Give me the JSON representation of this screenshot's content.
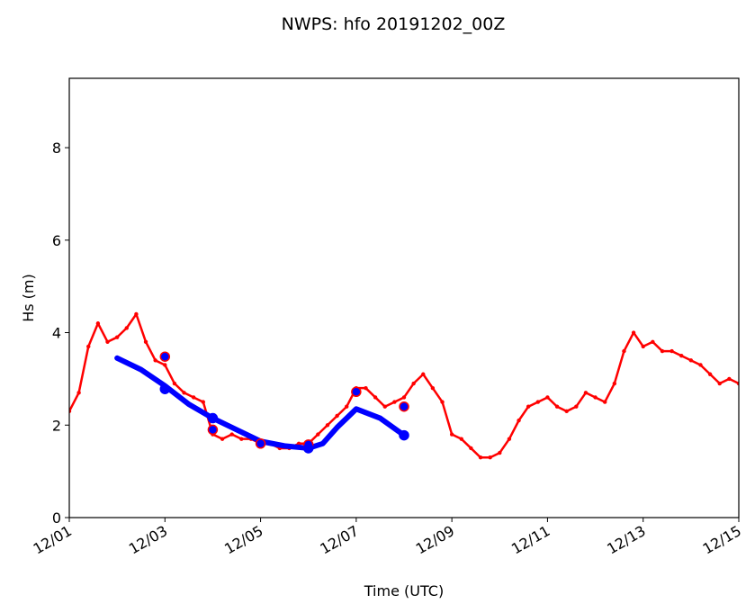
{
  "chart_data": {
    "type": "line",
    "title": "NWPS: hfo 20191202_00Z",
    "x_label": "Time (UTC)",
    "y_label": "Hs (m)",
    "xlim": [
      1,
      15
    ],
    "ylim": [
      0,
      9.5
    ],
    "xticks": [
      {
        "value": 1,
        "label": "12/01"
      },
      {
        "value": 3,
        "label": "12/03"
      },
      {
        "value": 5,
        "label": "12/05"
      },
      {
        "value": 7,
        "label": "12/07"
      },
      {
        "value": 9,
        "label": "12/09"
      },
      {
        "value": 11,
        "label": "12/11"
      },
      {
        "value": 13,
        "label": "12/13"
      },
      {
        "value": 15,
        "label": "12/15"
      }
    ],
    "yticks": [
      0,
      2,
      4,
      6,
      8
    ],
    "grid": false,
    "series": [
      {
        "color": "#ff0000",
        "style": "line-dots",
        "x": [
          1.0,
          1.2,
          1.4,
          1.6,
          1.8,
          2.0,
          2.2,
          2.4,
          2.6,
          2.8,
          3.0,
          3.2,
          3.4,
          3.6,
          3.8,
          4.0,
          4.2,
          4.4,
          4.6,
          4.8,
          5.0,
          5.2,
          5.4,
          5.6,
          5.8,
          6.0,
          6.2,
          6.4,
          6.6,
          6.8,
          7.0,
          7.2,
          7.4,
          7.6,
          7.8,
          8.0,
          8.2,
          8.4,
          8.6,
          8.8,
          9.0,
          9.2,
          9.4,
          9.6,
          9.8,
          10.0,
          10.2,
          10.4,
          10.6,
          10.8,
          11.0,
          11.2,
          11.4,
          11.6,
          11.8,
          12.0,
          12.2,
          12.4,
          12.6,
          12.8,
          13.0,
          13.2,
          13.4,
          13.6,
          13.8,
          14.0,
          14.2,
          14.4,
          14.6,
          14.8,
          15.0
        ],
        "values": [
          2.3,
          2.7,
          3.7,
          4.2,
          3.8,
          3.9,
          4.1,
          4.4,
          3.8,
          3.4,
          3.3,
          2.9,
          2.7,
          2.6,
          2.5,
          1.8,
          1.7,
          1.8,
          1.7,
          1.7,
          1.6,
          1.6,
          1.5,
          1.5,
          1.6,
          1.6,
          1.8,
          2.0,
          2.2,
          2.4,
          2.8,
          2.8,
          2.6,
          2.4,
          2.5,
          2.6,
          2.9,
          3.1,
          2.8,
          2.5,
          1.8,
          1.7,
          1.5,
          1.3,
          1.3,
          1.4,
          1.7,
          2.1,
          2.4,
          2.5,
          2.6,
          2.4,
          2.3,
          2.4,
          2.7,
          2.6,
          2.5,
          2.9,
          3.6,
          4.0,
          3.7,
          3.8,
          3.6,
          3.6,
          3.5,
          3.4,
          3.3,
          3.1,
          2.9,
          3.0,
          2.9
        ]
      },
      {
        "color": "#0000ff",
        "style": "thick-line",
        "x": [
          2.0,
          2.5,
          3.0,
          3.5,
          4.0,
          4.5,
          5.0,
          5.5,
          6.0,
          6.3,
          6.6,
          7.0,
          7.5,
          8.0
        ],
        "values": [
          3.45,
          3.2,
          2.85,
          2.45,
          2.15,
          1.9,
          1.65,
          1.55,
          1.5,
          1.6,
          1.95,
          2.35,
          2.15,
          1.78
        ]
      },
      {
        "color": "#0000ff",
        "edge": "#ff0000",
        "style": "points",
        "x": [
          3,
          4,
          5,
          6,
          7,
          8
        ],
        "values": [
          3.48,
          1.9,
          1.6,
          1.58,
          2.72,
          2.4
        ]
      },
      {
        "color": "#0000ff",
        "edge": "#0000ff",
        "style": "points",
        "x": [
          3,
          4,
          6,
          8
        ],
        "values": [
          2.78,
          2.15,
          1.5,
          1.78
        ]
      }
    ]
  }
}
